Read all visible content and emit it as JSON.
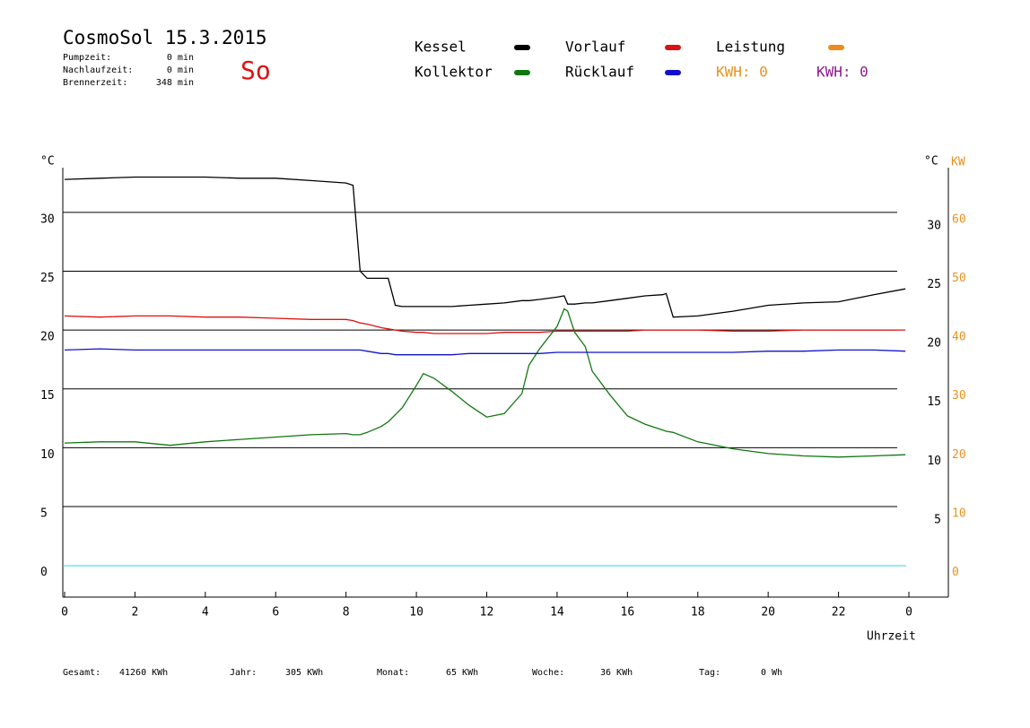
{
  "header": {
    "title": "CosmoSol 15.3.2015",
    "day": "So",
    "stats": [
      {
        "label": "Pumpzeit:",
        "value": "0 min"
      },
      {
        "label": "Nachlaufzeit:",
        "value": "0 min"
      },
      {
        "label": "Brennerzeit:",
        "value": "348 min"
      }
    ]
  },
  "legend_extra": [
    {
      "name": "Leistung",
      "color": "#f08a1c"
    }
  ],
  "kwh": [
    {
      "text": "KWH: 0",
      "color": "#e8921e"
    },
    {
      "text": "KWH: 0",
      "color": "#8b1a8b"
    }
  ],
  "footer": [
    {
      "label": "Gesamt:",
      "value": "41260 KWh"
    },
    {
      "label": "Jahr:",
      "value": "305 KWh"
    },
    {
      "label": "Monat:",
      "value": "65 KWh"
    },
    {
      "label": "Woche:",
      "value": "36 KWh"
    },
    {
      "label": "Tag:",
      "value": "0 Wh"
    }
  ],
  "chart_data": {
    "type": "line",
    "x_label": "Uhrzeit",
    "y_label": "°C",
    "y_right_label": "°C",
    "y2_label": "KW",
    "x": [
      0,
      1,
      2,
      3,
      4,
      5,
      6,
      7,
      8,
      8.2,
      8.4,
      8.6,
      9,
      9.2,
      9.4,
      9.6,
      10,
      10.2,
      10.5,
      11,
      11.5,
      12,
      12.5,
      13,
      13.2,
      13.5,
      14,
      14.2,
      14.3,
      14.5,
      14.8,
      15,
      15.5,
      16,
      16.5,
      17,
      17.1,
      17.3,
      18,
      19,
      20,
      21,
      22,
      23,
      23.9
    ],
    "xlim": [
      0,
      24
    ],
    "xticks": [
      0,
      2,
      4,
      6,
      8,
      10,
      12,
      14,
      16,
      18,
      20,
      22,
      {
        "value": 24,
        "label": "0"
      }
    ],
    "ylim": [
      -2.7,
      33.8
    ],
    "yticks": [
      0,
      5,
      10,
      15,
      20,
      25,
      30
    ],
    "yticks_right": [
      5,
      10,
      15,
      20,
      25,
      30
    ],
    "y2lim": [
      -5.4,
      67.6
    ],
    "y2ticks": [
      0,
      10,
      20,
      30,
      40,
      50,
      60
    ],
    "y2color": "#e8921e",
    "grid": true,
    "series": [
      {
        "name": "Kessel",
        "color": "#000000",
        "values": [
          32.8,
          32.9,
          33.0,
          33.0,
          33.0,
          32.9,
          32.9,
          32.7,
          32.5,
          32.3,
          25.0,
          24.4,
          24.4,
          24.4,
          22.1,
          22.0,
          22.0,
          22.0,
          22.0,
          22.0,
          22.1,
          22.2,
          22.3,
          22.5,
          22.5,
          22.6,
          22.8,
          22.9,
          22.2,
          22.2,
          22.3,
          22.3,
          22.5,
          22.7,
          22.9,
          23.0,
          23.1,
          21.1,
          21.2,
          21.6,
          22.1,
          22.3,
          22.4,
          23.0,
          23.5
        ]
      },
      {
        "name": "Kollektor",
        "color": "#117711",
        "values": [
          10.4,
          10.5,
          10.5,
          10.2,
          10.5,
          10.7,
          10.9,
          11.1,
          11.2,
          11.1,
          11.1,
          11.3,
          11.8,
          12.2,
          12.8,
          13.4,
          15.3,
          16.3,
          15.9,
          14.8,
          13.6,
          12.6,
          12.9,
          14.6,
          17.0,
          18.4,
          20.3,
          21.8,
          21.6,
          19.8,
          18.6,
          16.5,
          14.5,
          12.7,
          12.0,
          11.5,
          11.4,
          11.3,
          10.5,
          9.9,
          9.5,
          9.3,
          9.2,
          9.3,
          9.4
        ]
      },
      {
        "name": "Vorlauf",
        "color": "#dd1111",
        "values": [
          21.2,
          21.1,
          21.2,
          21.2,
          21.1,
          21.1,
          21.0,
          20.9,
          20.9,
          20.8,
          20.6,
          20.5,
          20.2,
          20.1,
          20.0,
          19.9,
          19.8,
          19.8,
          19.7,
          19.7,
          19.7,
          19.7,
          19.8,
          19.8,
          19.8,
          19.8,
          19.9,
          19.9,
          19.9,
          19.9,
          19.9,
          19.9,
          19.9,
          19.9,
          20.0,
          20.0,
          20.0,
          20.0,
          20.0,
          19.9,
          19.9,
          20.0,
          20.0,
          20.0,
          20.0
        ]
      },
      {
        "name": "Rücklauf",
        "color": "#1111cc",
        "values": [
          18.3,
          18.4,
          18.3,
          18.3,
          18.3,
          18.3,
          18.3,
          18.3,
          18.3,
          18.3,
          18.3,
          18.2,
          18.0,
          18.0,
          17.9,
          17.9,
          17.9,
          17.9,
          17.9,
          17.9,
          18.0,
          18.0,
          18.0,
          18.0,
          18.0,
          18.0,
          18.1,
          18.1,
          18.1,
          18.1,
          18.1,
          18.1,
          18.1,
          18.1,
          18.1,
          18.1,
          18.1,
          18.1,
          18.1,
          18.1,
          18.2,
          18.2,
          18.3,
          18.3,
          18.2
        ]
      }
    ]
  }
}
